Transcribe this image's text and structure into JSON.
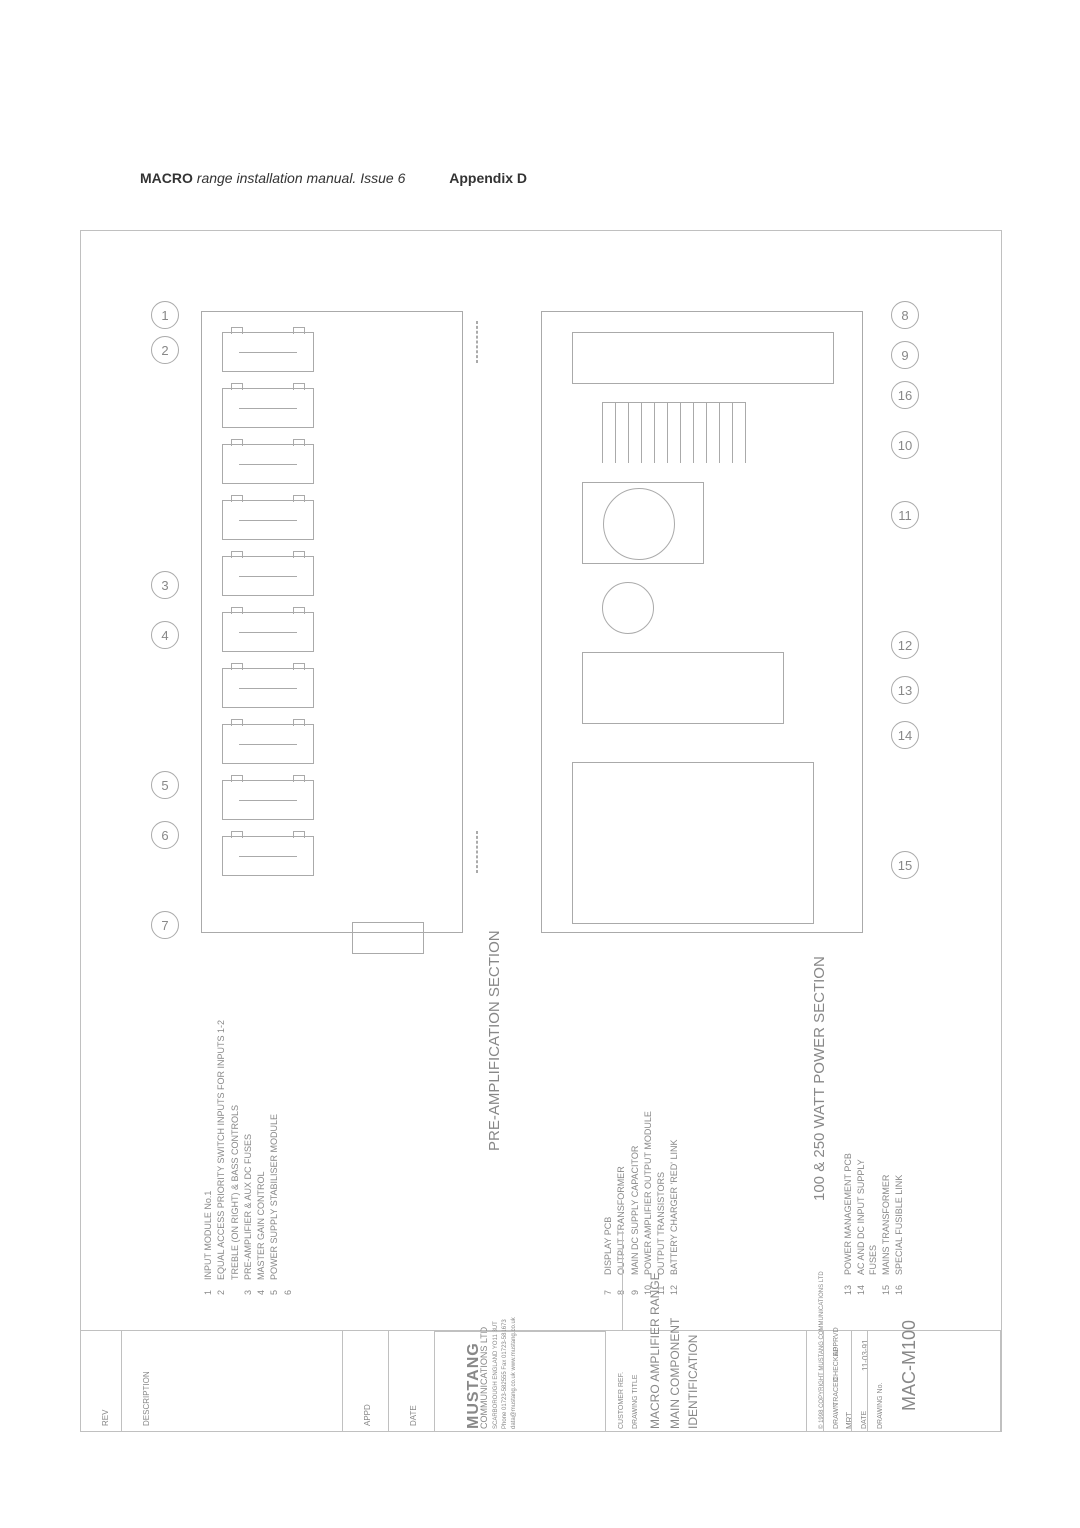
{
  "header": {
    "brand": "MACRO",
    "subtitle": "range installation manual.  Issue 6",
    "appendix": "Appendix D"
  },
  "diagram": {
    "preamp_label": "PRE-AMPLIFICATION SECTION",
    "power_label": "100 & 250 WATT POWER SECTION",
    "left_callouts": [
      "1",
      "2",
      "3",
      "4",
      "5",
      "6",
      "7"
    ],
    "right_callouts": [
      "8",
      "9",
      "16",
      "10",
      "11",
      "12",
      "13",
      "14",
      "15"
    ]
  },
  "legend": {
    "col1": [
      {
        "n": "1",
        "t": "INPUT MODULE No.1"
      },
      {
        "n": "2",
        "t": "EQUAL ACCESS PRIORITY SWITCH INPUTS FOR INPUTS 1-2"
      },
      {
        "n": "",
        "t": "TREBLE  (ON RIGHT) & BASS CONTROLS"
      },
      {
        "n": "3",
        "t": "PRE-AMPLIFIER &  AUX DC FUSES"
      },
      {
        "n": "4",
        "t": "MASTER GAIN CONTROL"
      },
      {
        "n": "5",
        "t": "POWER SUPPLY STABILISER MODULE"
      },
      {
        "n": "6",
        "t": ""
      }
    ],
    "col2": [
      {
        "n": "7",
        "t": "DISPLAY PCB"
      },
      {
        "n": "8",
        "t": "OUTPUT TRANSFORMER"
      },
      {
        "n": "9",
        "t": "MAIN DC SUPPLY CAPACITOR"
      },
      {
        "n": "10",
        "t": "POWER AMPLIFIER OUTPUT MODULE"
      },
      {
        "n": "11",
        "t": "OUTPUT TRANSISTORS"
      },
      {
        "n": "12",
        "t": "BATTERY CHARGER 'RED' LINK"
      }
    ],
    "col3": [
      {
        "n": "13",
        "t": "POWER MANAGEMENT PCB"
      },
      {
        "n": "14",
        "t": "AC AND DC INPUT SUPPLY FUSES"
      },
      {
        "n": "15",
        "t": "MAINS TRANSFORMER"
      },
      {
        "n": "16",
        "t": "SPECIAL FUSIBLE LINK"
      }
    ]
  },
  "titleblock": {
    "rev": "REV",
    "description": "DESCRIPTION",
    "appd": "APPD",
    "date_h": "DATE",
    "company1": "MUSTANG",
    "company2": "COMMUNICATIONS LTD",
    "addr1": "SCARBOROUGH  ENGLAND  YO11 3UT",
    "addr2": "Phone 01723-582555  Fax 01723-581673",
    "addr3": "data@mustang.co.uk    www.mustang.co.uk",
    "customer_ref": "CUSTOMER REF.",
    "drawing_title": "DRAWING TITLE",
    "title1": "MACRO AMPLIFIER RANGE",
    "title2": "MAIN COMPONENT",
    "title3": "IDENTIFICATION",
    "copyright": "© 1998         COPYRIGHT MUSTANG COMMUNICATIONS LTD",
    "drawn": "DRAWN",
    "drawn_v": "MRT",
    "traced": "TRACED",
    "checked": "CHECKED",
    "apprvd": "APPRVD",
    "date": "DATE",
    "date_v": "11-03-91",
    "drawing_no": "DRAWING No.",
    "dwg": "MAC-M100"
  }
}
